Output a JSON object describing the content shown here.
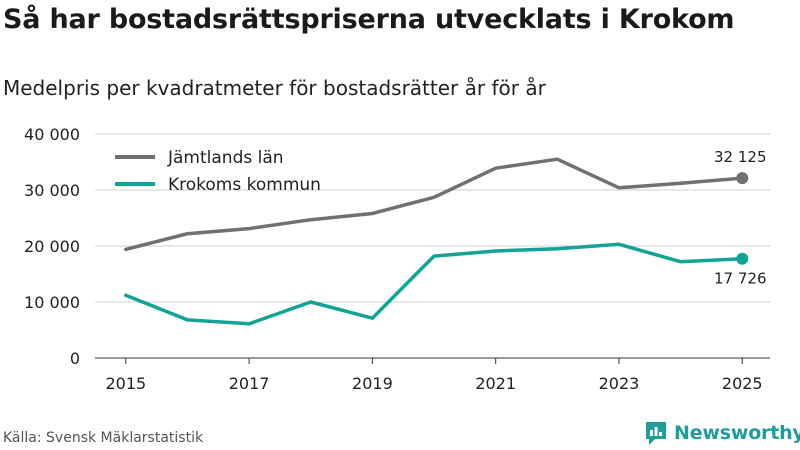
{
  "header": {
    "title": "Så har bostadsrättspriserna utvecklats i Krokom",
    "subtitle": "Medelpris per kvadratmeter för bostadsrätter år för år"
  },
  "footer": {
    "source": "Källa: Svensk Mäklarstatistik",
    "brand": "Newsworthy"
  },
  "colors": {
    "jamtland": "#707070",
    "krokom": "#10a396",
    "brand": "#1f9e98",
    "grid": "#d0d0d0"
  },
  "chart_data": {
    "type": "line",
    "title": "Så har bostadsrättspriserna utvecklats i Krokom",
    "subtitle": "Medelpris per kvadratmeter för bostadsrätter år för år",
    "xlabel": "",
    "ylabel": "",
    "x": [
      2015,
      2016,
      2017,
      2018,
      2019,
      2020,
      2021,
      2022,
      2023,
      2024,
      2025
    ],
    "x_ticks": [
      2015,
      2017,
      2019,
      2021,
      2023,
      2025
    ],
    "x_tick_labels": [
      "2015",
      "2017",
      "2019",
      "2021",
      "2023",
      "2025"
    ],
    "xlim": [
      2015,
      2025
    ],
    "ylim": [
      0,
      40000
    ],
    "y_ticks": [
      0,
      10000,
      20000,
      30000,
      40000
    ],
    "y_tick_labels": [
      "0",
      "10 000",
      "20 000",
      "30 000",
      "40 000"
    ],
    "grid": true,
    "legend_position": "top-left",
    "series": [
      {
        "name": "Jämtlands län",
        "color": "#707070",
        "values": [
          19400,
          22200,
          23100,
          24700,
          25800,
          28700,
          33900,
          35500,
          30400,
          31200,
          32125
        ],
        "end_label": "32 125"
      },
      {
        "name": "Krokoms kommun",
        "color": "#10a396",
        "values": [
          11200,
          6800,
          6100,
          10000,
          7100,
          18200,
          19100,
          19500,
          20300,
          17200,
          17726
        ],
        "end_label": "17 726"
      }
    ]
  }
}
